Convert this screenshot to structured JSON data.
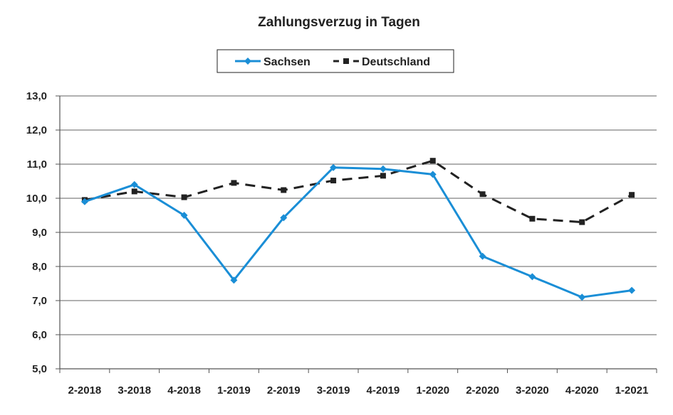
{
  "chart_data": {
    "type": "line",
    "title": "Zahlungsverzug in Tagen",
    "xlabel": "",
    "ylabel": "",
    "categories": [
      "2-2018",
      "3-2018",
      "4-2018",
      "1-2019",
      "2-2019",
      "3-2019",
      "4-2019",
      "1-2020",
      "2-2020",
      "3-2020",
      "4-2020",
      "1-2021"
    ],
    "series": [
      {
        "name": "Sachsen",
        "color": "#1a8ed6",
        "line_style": "solid",
        "marker": "diamond",
        "values": [
          9.9,
          10.4,
          9.5,
          7.6,
          9.43,
          10.9,
          10.86,
          10.7,
          8.3,
          7.7,
          7.1,
          7.3
        ]
      },
      {
        "name": "Deutschland",
        "color": "#222222",
        "line_style": "dashed",
        "marker": "square",
        "values": [
          9.95,
          10.2,
          10.03,
          10.45,
          10.24,
          10.52,
          10.66,
          11.1,
          10.12,
          9.4,
          9.3,
          10.1
        ]
      }
    ],
    "ylim": [
      5,
      13
    ],
    "yticks": [
      "5,0",
      "6,0",
      "7,0",
      "8,0",
      "9,0",
      "10,0",
      "11,0",
      "12,0",
      "13,0"
    ],
    "grid": true,
    "legend": "top-center"
  }
}
